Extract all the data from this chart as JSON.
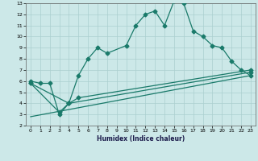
{
  "xlabel": "Humidex (Indice chaleur)",
  "bg_color": "#cce8e8",
  "grid_color": "#aacfcf",
  "line_color": "#1a7a6a",
  "xlim": [
    -0.5,
    23.5
  ],
  "ylim": [
    2,
    13
  ],
  "xticks": [
    0,
    1,
    2,
    3,
    4,
    5,
    6,
    7,
    8,
    9,
    10,
    11,
    12,
    13,
    14,
    15,
    16,
    17,
    18,
    19,
    20,
    21,
    22,
    23
  ],
  "yticks": [
    2,
    3,
    4,
    5,
    6,
    7,
    8,
    9,
    10,
    11,
    12,
    13
  ],
  "curve1_x": [
    0,
    1,
    2,
    3,
    4,
    5,
    6,
    7,
    8,
    10,
    11,
    12,
    13,
    14,
    15,
    16,
    17,
    18,
    19,
    20,
    21,
    22,
    23
  ],
  "curve1_y": [
    6,
    5.8,
    5.8,
    3,
    4,
    6.5,
    8,
    9,
    8.5,
    9.2,
    11,
    12,
    12.3,
    11,
    13.2,
    13,
    10.5,
    10,
    9.2,
    9,
    7.8,
    7,
    6.5
  ],
  "curve2_x": [
    0,
    4,
    5,
    23
  ],
  "curve2_y": [
    5.8,
    4,
    4.5,
    7
  ],
  "curve3_x": [
    0,
    3,
    4,
    23
  ],
  "curve3_y": [
    5.8,
    3.2,
    4,
    6.8
  ],
  "curve4_x": [
    0,
    23
  ],
  "curve4_y": [
    2.8,
    6.5
  ],
  "marker_size": 2.5,
  "line_width": 0.9,
  "tick_fontsize": 4.5,
  "xlabel_fontsize": 5.5
}
